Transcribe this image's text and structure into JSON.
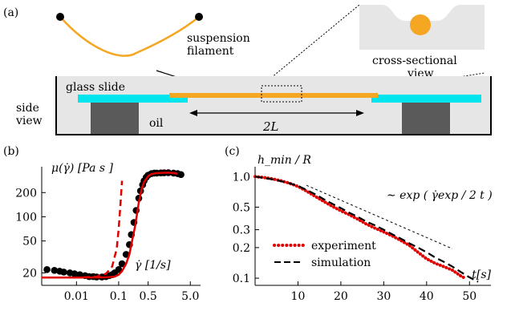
{
  "panel_a": {
    "label": "(a)",
    "suspension_line1": "suspension",
    "suspension_line2": "filament",
    "cross_line1": "cross-sectional",
    "cross_line2": "view",
    "glass_slide": "glass slide",
    "side_line1": "side",
    "side_line2": "view",
    "oil": "oil",
    "length": "2L",
    "colors": {
      "filament": "#f5a623",
      "glass": "#00e5ee",
      "block": "#5a5a5a",
      "bath": "#e6e6e6"
    }
  },
  "panel_b": {
    "label": "(b)",
    "ylabel": "μ(γ̇)  [Pa s ]",
    "xlabel": "γ̇  [1/s]",
    "xticks": [
      "0.01",
      "0.1",
      "0.5",
      "5.0"
    ],
    "yticks": [
      "20",
      "50",
      "100",
      "200"
    ]
  },
  "panel_c": {
    "label": "(c)",
    "ylabel": "h_min / R",
    "xlabel": "t[s]",
    "xticks": [
      "10",
      "20",
      "30",
      "40",
      "50"
    ],
    "yticks": [
      "1.0",
      "0.5",
      "0.3",
      "0.2",
      "0.1"
    ],
    "annotation": "∼ exp ( γ̇exp / 2 t )",
    "legend": {
      "experiment": "experiment",
      "simulation": "simulation"
    }
  },
  "chart_data": [
    {
      "type": "scatter",
      "panel": "b",
      "log_x": true,
      "log_y": true,
      "xlim": [
        0.0015,
        8
      ],
      "ylim": [
        14,
        420
      ],
      "xlabel": "γ̇ [1/s]",
      "ylabel": "μ(γ̇) [Pa s]",
      "series": [
        {
          "kind": "markers",
          "color": "#000000",
          "x": [
            0.002,
            0.003,
            0.004,
            0.005,
            0.007,
            0.009,
            0.012,
            0.016,
            0.02,
            0.025,
            0.03,
            0.04,
            0.05,
            0.06,
            0.07,
            0.08,
            0.1,
            0.12,
            0.15,
            0.18,
            0.2,
            0.23,
            0.26,
            0.3,
            0.33,
            0.37,
            0.4,
            0.45,
            0.5,
            0.6,
            0.7,
            0.8,
            1.0,
            1.2,
            1.5,
            2.0,
            2.5,
            3.0
          ],
          "y": [
            22,
            21.5,
            21,
            20.5,
            20,
            19.5,
            19,
            18.5,
            18,
            18,
            17.8,
            17.8,
            18,
            18.5,
            19,
            20,
            22,
            26,
            34,
            45,
            60,
            85,
            120,
            170,
            210,
            250,
            280,
            310,
            330,
            345,
            350,
            350,
            352,
            353,
            354,
            350,
            345,
            335
          ]
        },
        {
          "kind": "solid",
          "color": "#e00000",
          "x": [
            0.0015,
            0.01,
            0.05,
            0.08,
            0.1,
            0.12,
            0.15,
            0.18,
            0.2,
            0.25,
            0.3,
            0.35,
            0.4,
            0.5,
            0.6,
            0.8,
            1.0,
            1.5,
            2.0,
            2.5
          ],
          "y": [
            17.5,
            17.5,
            17.6,
            18,
            19,
            21,
            26,
            34,
            45,
            80,
            150,
            220,
            270,
            320,
            340,
            350,
            352,
            354,
            350,
            345
          ]
        },
        {
          "kind": "dashed",
          "color": "#e00000",
          "x": [
            0.0015,
            0.01,
            0.03,
            0.05,
            0.07,
            0.09,
            0.1,
            0.11,
            0.12
          ],
          "y": [
            17.5,
            17.5,
            18,
            19.5,
            24,
            40,
            70,
            140,
            280
          ]
        }
      ]
    },
    {
      "type": "line",
      "panel": "c",
      "log_y": true,
      "xlim": [
        0,
        55
      ],
      "ylim": [
        0.085,
        1.25
      ],
      "xlabel": "t[s]",
      "ylabel": "h_min/R",
      "series": [
        {
          "name": "experiment",
          "kind": "dotted",
          "color": "#e00000",
          "x": [
            0,
            2,
            4,
            6,
            8,
            10,
            12,
            14,
            16,
            18,
            20,
            22,
            24,
            26,
            28,
            30,
            32,
            34,
            36,
            38,
            40,
            42,
            44,
            46,
            48,
            49
          ],
          "y": [
            1.0,
            0.98,
            0.95,
            0.91,
            0.86,
            0.8,
            0.72,
            0.64,
            0.57,
            0.51,
            0.46,
            0.42,
            0.38,
            0.34,
            0.31,
            0.285,
            0.26,
            0.235,
            0.21,
            0.18,
            0.155,
            0.14,
            0.13,
            0.12,
            0.105,
            0.1
          ]
        },
        {
          "name": "simulation",
          "kind": "dashed",
          "color": "#000000",
          "x": [
            0,
            2,
            4,
            6,
            8,
            10,
            12,
            14,
            16,
            18,
            20,
            22,
            24,
            26,
            28,
            30,
            32,
            34,
            36,
            38,
            40,
            42,
            44,
            46,
            48,
            50,
            52
          ],
          "y": [
            1.0,
            0.97,
            0.94,
            0.9,
            0.86,
            0.81,
            0.74,
            0.67,
            0.6,
            0.54,
            0.49,
            0.44,
            0.4,
            0.36,
            0.33,
            0.3,
            0.27,
            0.245,
            0.22,
            0.2,
            0.18,
            0.16,
            0.145,
            0.13,
            0.115,
            0.102,
            0.092
          ]
        },
        {
          "name": "",
          "kind": "thin-dashed",
          "color": "#000000",
          "x": [
            12,
            46
          ],
          "y": [
            0.82,
            0.195
          ]
        }
      ]
    }
  ]
}
